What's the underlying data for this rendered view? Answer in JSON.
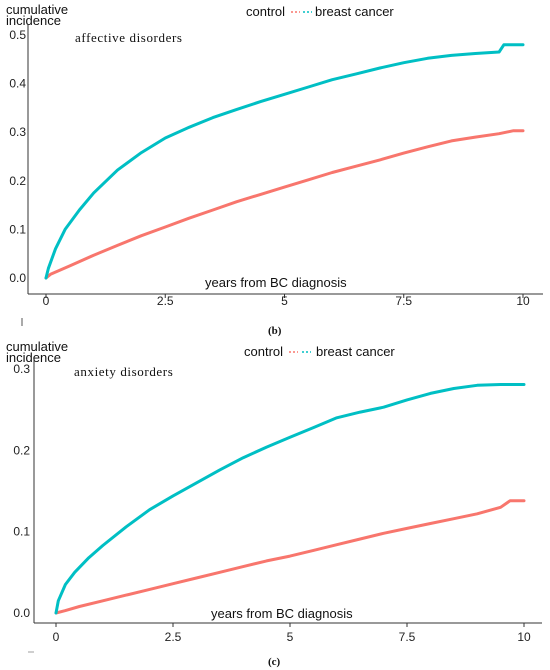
{
  "chart_data": [
    {
      "type": "line",
      "panel_caption": "(b)",
      "annotation": "affective disorders",
      "ylabel": [
        "cumulative",
        "incidence"
      ],
      "xlabel": "years from BC diagnosis",
      "legend_labels": [
        "control",
        "breast cancer"
      ],
      "legend_position": "top-center",
      "xlim": [
        0,
        10
      ],
      "ylim": [
        0,
        0.5
      ],
      "x_ticks": [
        "0",
        "2.5",
        "5",
        "7.5",
        "10"
      ],
      "y_ticks": [
        "0.0",
        "0.1",
        "0.2",
        "0.3",
        "0.4",
        "0.5"
      ],
      "grid": false,
      "series": [
        {
          "name": "control",
          "color": "#F8766D",
          "x": [
            0,
            0.1,
            0.5,
            1,
            1.5,
            2,
            2.5,
            3,
            3.5,
            4,
            4.5,
            5,
            5.5,
            6,
            6.5,
            7,
            7.5,
            8,
            8.5,
            9,
            9.5,
            9.8,
            10
          ],
          "y": [
            0.0,
            0.008,
            0.025,
            0.047,
            0.067,
            0.087,
            0.105,
            0.123,
            0.14,
            0.157,
            0.172,
            0.187,
            0.202,
            0.217,
            0.23,
            0.243,
            0.257,
            0.27,
            0.282,
            0.29,
            0.297,
            0.303,
            0.303
          ]
        },
        {
          "name": "breast cancer",
          "color": "#00BFC4",
          "x": [
            0,
            0.05,
            0.2,
            0.4,
            0.7,
            1,
            1.5,
            2,
            2.5,
            3,
            3.5,
            4,
            4.5,
            5,
            5.5,
            6,
            6.5,
            7,
            7.5,
            8,
            8.5,
            9,
            9.5,
            9.6,
            10
          ],
          "y": [
            0.0,
            0.02,
            0.06,
            0.1,
            0.14,
            0.175,
            0.222,
            0.258,
            0.288,
            0.31,
            0.33,
            0.347,
            0.363,
            0.378,
            0.393,
            0.408,
            0.42,
            0.432,
            0.443,
            0.452,
            0.458,
            0.462,
            0.465,
            0.48,
            0.48
          ]
        }
      ]
    },
    {
      "type": "line",
      "panel_caption": "(c)",
      "annotation": "anxiety disorders",
      "ylabel": [
        "cumulative",
        "incidence"
      ],
      "xlabel": "years from BC diagnosis",
      "legend_labels": [
        "control",
        "breast cancer"
      ],
      "legend_position": "top-center",
      "xlim": [
        0,
        10
      ],
      "ylim": [
        0,
        0.3
      ],
      "x_ticks": [
        "0",
        "2.5",
        "5",
        "7.5",
        "10"
      ],
      "y_ticks": [
        "0.0",
        "0.1",
        "0.2",
        "0.3"
      ],
      "grid": false,
      "series": [
        {
          "name": "control",
          "color": "#F8766D",
          "x": [
            0,
            0.2,
            0.5,
            1,
            1.5,
            2,
            2.5,
            3,
            3.5,
            4,
            4.5,
            5,
            5.5,
            6,
            6.5,
            7,
            7.5,
            8,
            8.5,
            9,
            9.5,
            9.7,
            10
          ],
          "y": [
            0.0,
            0.003,
            0.008,
            0.015,
            0.022,
            0.029,
            0.036,
            0.043,
            0.05,
            0.057,
            0.064,
            0.07,
            0.077,
            0.084,
            0.091,
            0.098,
            0.104,
            0.11,
            0.116,
            0.122,
            0.13,
            0.138,
            0.138
          ]
        },
        {
          "name": "breast cancer",
          "color": "#00BFC4",
          "x": [
            0,
            0.05,
            0.2,
            0.4,
            0.7,
            1,
            1.5,
            2,
            2.5,
            3,
            3.5,
            4,
            4.5,
            5,
            5.5,
            6,
            6.5,
            7,
            7.5,
            8,
            8.5,
            9,
            9.5,
            10
          ],
          "y": [
            0.0,
            0.015,
            0.035,
            0.05,
            0.068,
            0.083,
            0.106,
            0.127,
            0.144,
            0.16,
            0.176,
            0.191,
            0.204,
            0.216,
            0.228,
            0.24,
            0.247,
            0.253,
            0.262,
            0.27,
            0.276,
            0.28,
            0.281,
            0.281
          ]
        }
      ]
    }
  ]
}
